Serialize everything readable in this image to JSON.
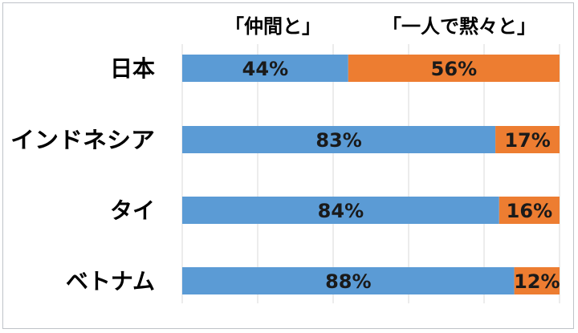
{
  "chart_data": {
    "type": "bar",
    "stacked": true,
    "orientation": "horizontal",
    "percent_stacked": true,
    "categories": [
      "日本",
      "インドネシア",
      "タイ",
      "ベトナム"
    ],
    "series": [
      {
        "name": "「仲間と」",
        "values": [
          44,
          83,
          84,
          88
        ],
        "labels": [
          "44%",
          "83%",
          "84%",
          "88%"
        ],
        "color": "#5b9bd5"
      },
      {
        "name": "「一人で黙々と」",
        "values": [
          56,
          17,
          16,
          12
        ],
        "labels": [
          "56%",
          "17%",
          "16%",
          "12%"
        ],
        "color": "#ed7d31"
      }
    ],
    "xlim": [
      0,
      100
    ],
    "grid": true,
    "legend": "top"
  }
}
